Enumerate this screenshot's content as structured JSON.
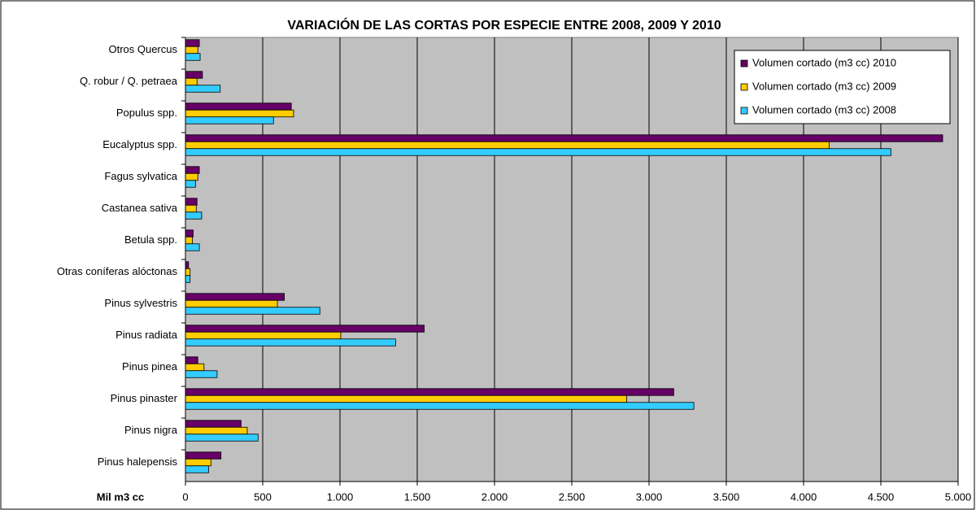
{
  "chart_data": {
    "type": "bar",
    "orientation": "horizontal",
    "title": "VARIACIÓN DE LAS CORTAS POR ESPECIE ENTRE 2008, 2009 Y 2010",
    "x_label": "Mil m3 cc",
    "categories": [
      "Otros Quercus",
      "Q. robur / Q. petraea",
      "Populus spp.",
      "Eucalyptus spp.",
      "Fagus sylvatica",
      "Castanea sativa",
      "Betula spp.",
      "Otras coníferas alóctonas",
      "Pinus sylvestris",
      "Pinus radiata",
      "Pinus pinea",
      "Pinus pinaster",
      "Pinus nigra",
      "Pinus halepensis"
    ],
    "series": [
      {
        "name": "Volumen cortado (m3 cc) 2010",
        "color": "#660066",
        "values": [
          90,
          110,
          685,
          4900,
          90,
          75,
          50,
          20,
          640,
          1545,
          80,
          3160,
          360,
          230
        ]
      },
      {
        "name": "Volumen cortado (m3 cc) 2009",
        "color": "#ffcc00",
        "values": [
          80,
          75,
          700,
          4165,
          80,
          70,
          45,
          30,
          595,
          1005,
          120,
          2855,
          400,
          165
        ]
      },
      {
        "name": "Volumen cortado (m3 cc) 2008",
        "color": "#33ccff",
        "values": [
          95,
          225,
          570,
          4565,
          65,
          105,
          90,
          30,
          870,
          1360,
          205,
          3290,
          470,
          150
        ]
      }
    ],
    "xlim": [
      0,
      5000
    ],
    "xticks": [
      0,
      500,
      {
        "value": 1000,
        "label": "1.000"
      },
      {
        "value": 1500,
        "label": "1.500"
      },
      {
        "value": 2000,
        "label": "2.000"
      },
      {
        "value": 2500,
        "label": "2.500"
      },
      {
        "value": 3000,
        "label": "3.000"
      },
      {
        "value": 3500,
        "label": "3.500"
      },
      {
        "value": 4000,
        "label": "4.000"
      },
      {
        "value": 4500,
        "label": "4.500"
      },
      {
        "value": 5000,
        "label": "5.000"
      }
    ],
    "grid": true,
    "legend": "top-right"
  }
}
